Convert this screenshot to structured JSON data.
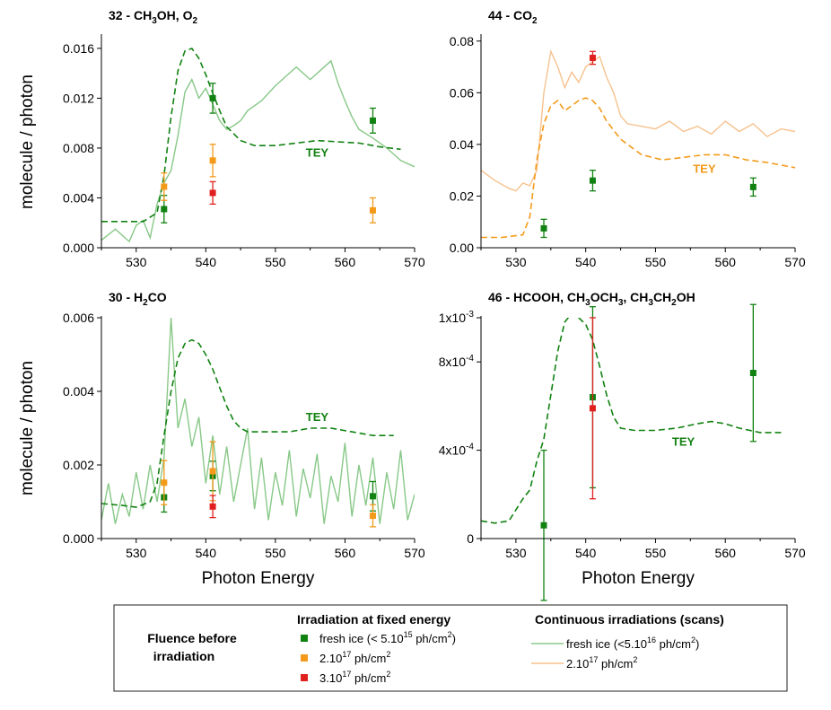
{
  "colors": {
    "green": "#118211",
    "lightgreen": "#88c888",
    "orange": "#f39a1a",
    "lightorange": "#f6c28e",
    "red": "#e0201e"
  },
  "shared": {
    "xlabel": "Photon Energy",
    "ylabel": "molecule / photon",
    "tey_label": "TEY"
  },
  "legend": {
    "fluence_title_line1": "Fluence before",
    "fluence_title_line2": "irradiation",
    "fixed_title": "Irradiation at fixed energy",
    "continuous_title": "Continuous irradiations (scans)",
    "fixed_items": [
      {
        "base": "fresh ice (< 5.10",
        "sup": "15",
        "rest": " ph/cm",
        "sup2": "2",
        "end": ")",
        "color_key": "green"
      },
      {
        "base": "2.10",
        "sup": "17",
        "rest": " ph/cm",
        "sup2": "2",
        "end": "",
        "color_key": "orange"
      },
      {
        "base": "3.10",
        "sup": "17",
        "rest": " ph/cm",
        "sup2": "2",
        "end": "",
        "color_key": "red"
      }
    ],
    "continuous_items": [
      {
        "base": "fresh ice (<5.10",
        "sup": "16",
        "rest": " ph/cm",
        "sup2": "2",
        "end": ")",
        "color_key": "lightgreen"
      },
      {
        "base": "2.10",
        "sup": "17",
        "rest": " ph/cm",
        "sup2": "2",
        "end": "",
        "color_key": "lightorange"
      }
    ]
  },
  "chart_data": [
    {
      "id": "p32",
      "type": "line",
      "title_parts": {
        "pre": "32 - CH",
        "sub1": "3",
        "mid": "OH, O",
        "sub2": "2",
        "post": ""
      },
      "xlim": [
        525,
        570
      ],
      "ylim": [
        0,
        0.017
      ],
      "xticks": [
        530,
        540,
        550,
        560,
        570
      ],
      "yticks": [
        0.0,
        0.004,
        0.008,
        0.012,
        0.016
      ],
      "ytick_labels": [
        "0.000",
        "0.004",
        "0.008",
        "0.012",
        "0.016"
      ],
      "show_xlabel": false,
      "show_ylabel": true,
      "tey": {
        "x": [
          525,
          528,
          531,
          533,
          534,
          535,
          536,
          537,
          538,
          539,
          540,
          541,
          542,
          543,
          545,
          547,
          550,
          553,
          556,
          559,
          562,
          565,
          568
        ],
        "y": [
          0.0021,
          0.0021,
          0.0021,
          0.0028,
          0.0058,
          0.0105,
          0.0142,
          0.0158,
          0.016,
          0.0152,
          0.0139,
          0.0124,
          0.011,
          0.0097,
          0.0086,
          0.0082,
          0.0082,
          0.0084,
          0.0086,
          0.0085,
          0.0084,
          0.0081,
          0.0079
        ],
        "label_at": [
          556,
          0.0073
        ]
      },
      "scans": [
        {
          "color_key": "lightgreen",
          "x": [
            525,
            527,
            529,
            530,
            531,
            532,
            533,
            534,
            535,
            536,
            537,
            538,
            539,
            540,
            541,
            542,
            543,
            544,
            545,
            546,
            548,
            550,
            552,
            553,
            555,
            557,
            558,
            559,
            560,
            561,
            562,
            564,
            566,
            568,
            570
          ],
          "y": [
            0.0006,
            0.0015,
            0.0005,
            0.0018,
            0.0022,
            0.0008,
            0.0035,
            0.0052,
            0.0062,
            0.009,
            0.0125,
            0.0135,
            0.012,
            0.0128,
            0.0115,
            0.0102,
            0.0095,
            0.0098,
            0.0102,
            0.011,
            0.0118,
            0.013,
            0.014,
            0.0145,
            0.0135,
            0.0145,
            0.015,
            0.0132,
            0.0118,
            0.0105,
            0.0095,
            0.0088,
            0.008,
            0.007,
            0.0065
          ]
        }
      ],
      "points": [
        {
          "x": 534,
          "y": 0.0031,
          "err": 0.0011,
          "color_key": "green"
        },
        {
          "x": 541,
          "y": 0.012,
          "err": 0.0012,
          "color_key": "green"
        },
        {
          "x": 564,
          "y": 0.0102,
          "err": 0.001,
          "color_key": "green"
        },
        {
          "x": 534,
          "y": 0.0049,
          "err": 0.0011,
          "color_key": "orange"
        },
        {
          "x": 541,
          "y": 0.007,
          "err": 0.0013,
          "color_key": "orange"
        },
        {
          "x": 564,
          "y": 0.003,
          "err": 0.001,
          "color_key": "orange"
        },
        {
          "x": 541,
          "y": 0.0044,
          "err": 0.0009,
          "color_key": "red"
        }
      ]
    },
    {
      "id": "p44",
      "type": "line",
      "title_parts": {
        "pre": "44 - CO",
        "sub1": "2",
        "mid": "",
        "sub2": "",
        "post": ""
      },
      "xlim": [
        525,
        570
      ],
      "ylim": [
        0,
        0.082
      ],
      "xticks": [
        530,
        540,
        550,
        560,
        570
      ],
      "yticks": [
        0.0,
        0.02,
        0.04,
        0.06,
        0.08
      ],
      "ytick_labels": [
        "0.00",
        "0.02",
        "0.04",
        "0.06",
        "0.08"
      ],
      "show_xlabel": false,
      "show_ylabel": false,
      "tey": {
        "x": [
          525,
          528,
          531,
          532,
          533,
          534,
          535,
          536,
          537,
          538,
          539,
          540,
          541,
          542,
          543,
          545,
          548,
          551,
          554,
          557,
          560,
          563,
          566,
          570
        ],
        "y": [
          0.004,
          0.004,
          0.005,
          0.012,
          0.034,
          0.048,
          0.055,
          0.057,
          0.053,
          0.055,
          0.057,
          0.058,
          0.057,
          0.054,
          0.049,
          0.042,
          0.036,
          0.034,
          0.035,
          0.036,
          0.036,
          0.034,
          0.033,
          0.031
        ],
        "label_at": [
          557,
          0.029
        ]
      },
      "scans": [
        {
          "color_key": "lightorange",
          "x": [
            525,
            527,
            529,
            530,
            531,
            532,
            533,
            534,
            535,
            536,
            537,
            538,
            539,
            540,
            541,
            542,
            543,
            544,
            545,
            546,
            548,
            550,
            552,
            554,
            556,
            558,
            560,
            562,
            564,
            566,
            568,
            570
          ],
          "y": [
            0.03,
            0.026,
            0.023,
            0.022,
            0.025,
            0.024,
            0.03,
            0.06,
            0.076,
            0.07,
            0.062,
            0.068,
            0.064,
            0.07,
            0.072,
            0.074,
            0.066,
            0.06,
            0.051,
            0.048,
            0.047,
            0.046,
            0.049,
            0.045,
            0.047,
            0.044,
            0.049,
            0.045,
            0.048,
            0.043,
            0.046,
            0.045
          ]
        }
      ],
      "points": [
        {
          "x": 534,
          "y": 0.0075,
          "err": 0.0035,
          "color_key": "green"
        },
        {
          "x": 541,
          "y": 0.026,
          "err": 0.004,
          "color_key": "green"
        },
        {
          "x": 564,
          "y": 0.0235,
          "err": 0.0035,
          "color_key": "green"
        },
        {
          "x": 541,
          "y": 0.0735,
          "err": 0.0025,
          "color_key": "red"
        }
      ]
    },
    {
      "id": "p30",
      "type": "line",
      "title_parts": {
        "pre": "30 - H",
        "sub1": "2",
        "mid": "CO",
        "sub2": "",
        "post": ""
      },
      "xlim": [
        525,
        570
      ],
      "ylim": [
        0,
        0.006
      ],
      "xticks": [
        530,
        540,
        550,
        560,
        570
      ],
      "yticks": [
        0.0,
        0.002,
        0.004,
        0.006
      ],
      "ytick_labels": [
        "0.000",
        "0.002",
        "0.004",
        "0.006"
      ],
      "show_xlabel": true,
      "show_ylabel": true,
      "tey": {
        "x": [
          525,
          528,
          530,
          532,
          533,
          534,
          535,
          536,
          537,
          538,
          539,
          540,
          541,
          542,
          543,
          544,
          545,
          546,
          549,
          552,
          555,
          558,
          561,
          564,
          567
        ],
        "y": [
          0.00095,
          0.0009,
          0.00085,
          0.001,
          0.0015,
          0.0028,
          0.004,
          0.0049,
          0.0053,
          0.0054,
          0.0053,
          0.005,
          0.0046,
          0.0041,
          0.0036,
          0.0032,
          0.003,
          0.0029,
          0.0029,
          0.0029,
          0.003,
          0.003,
          0.0029,
          0.0028,
          0.0028
        ],
        "label_at": [
          556,
          0.0032
        ]
      },
      "scans": [
        {
          "color_key": "lightgreen",
          "x": [
            525,
            526,
            527,
            528,
            529,
            530,
            531,
            532,
            533,
            534,
            535,
            536,
            537,
            538,
            539,
            540,
            541,
            542,
            543,
            544,
            545,
            546,
            547,
            548,
            549,
            550,
            551,
            552,
            553,
            554,
            555,
            556,
            557,
            558,
            559,
            560,
            561,
            562,
            563,
            564,
            565,
            566,
            567,
            568,
            569,
            570
          ],
          "y": [
            0.0005,
            0.0015,
            0.0004,
            0.0012,
            0.0006,
            0.0018,
            0.0008,
            0.002,
            0.001,
            0.0022,
            0.006,
            0.003,
            0.0038,
            0.0025,
            0.0033,
            0.0015,
            0.0028,
            0.0012,
            0.0025,
            0.001,
            0.002,
            0.003,
            0.0008,
            0.0022,
            0.0005,
            0.0018,
            0.0009,
            0.0024,
            0.0006,
            0.0019,
            0.0011,
            0.0023,
            0.0004,
            0.0017,
            0.001,
            0.0026,
            0.0006,
            0.002,
            0.0009,
            0.0022,
            0.0004,
            0.0018,
            0.0008,
            0.0024,
            0.0005,
            0.0012
          ]
        }
      ],
      "points": [
        {
          "x": 534,
          "y": 0.00112,
          "err": 0.0004,
          "color_key": "green"
        },
        {
          "x": 541,
          "y": 0.0017,
          "err": 0.0004,
          "color_key": "green"
        },
        {
          "x": 564,
          "y": 0.00115,
          "err": 0.0004,
          "color_key": "green"
        },
        {
          "x": 534,
          "y": 0.00152,
          "err": 0.0006,
          "color_key": "orange"
        },
        {
          "x": 541,
          "y": 0.00183,
          "err": 0.0008,
          "color_key": "orange"
        },
        {
          "x": 564,
          "y": 0.00062,
          "err": 0.0003,
          "color_key": "orange"
        },
        {
          "x": 541,
          "y": 0.00087,
          "err": 0.0003,
          "color_key": "red"
        }
      ]
    },
    {
      "id": "p46",
      "type": "line",
      "title_parts": {
        "pre": "46 - HCOOH, CH",
        "sub1": "3",
        "mid": "OCH",
        "sub2": "3",
        "post": ", CH",
        "sub3": "3",
        "post2": "CH",
        "sub4": "2",
        "post3": "OH"
      },
      "xlim": [
        525,
        570
      ],
      "ylim": [
        0,
        0.001
      ],
      "xticks": [
        530,
        540,
        550,
        560,
        570
      ],
      "yticks": [
        0,
        0.0004,
        0.0008,
        0.001
      ],
      "ytick_parts": [
        {
          "base": "0",
          "sup": ""
        },
        {
          "base": "4x10",
          "sup": "-4"
        },
        {
          "base": "8x10",
          "sup": "-4"
        },
        {
          "base": "1x10",
          "sup": "-3"
        }
      ],
      "show_xlabel": true,
      "show_ylabel": false,
      "tey": {
        "x": [
          525,
          527,
          529,
          531,
          532,
          533,
          534,
          535,
          536,
          537,
          538,
          539,
          540,
          541,
          542,
          543,
          544,
          545,
          547,
          550,
          553,
          556,
          558,
          560,
          562,
          565,
          568
        ],
        "y": [
          8e-05,
          7e-05,
          8e-05,
          0.00018,
          0.00022,
          0.00035,
          0.00045,
          0.00065,
          0.00085,
          0.00098,
          0.00102,
          0.001,
          0.00097,
          0.0009,
          0.00078,
          0.00065,
          0.00055,
          0.0005,
          0.00049,
          0.00049,
          0.0005,
          0.00052,
          0.00053,
          0.00052,
          0.0005,
          0.00048,
          0.00048
        ],
        "label_at": [
          554,
          0.00042
        ]
      },
      "scans": [],
      "points": [
        {
          "x": 534,
          "y": 6e-05,
          "err": 0.00034,
          "color_key": "green"
        },
        {
          "x": 541,
          "y": 0.00064,
          "err": 0.00041,
          "color_key": "green"
        },
        {
          "x": 564,
          "y": 0.00075,
          "err": 0.00031,
          "color_key": "green"
        },
        {
          "x": 541,
          "y": 0.00059,
          "err": 0.00041,
          "color_key": "red"
        }
      ]
    }
  ]
}
